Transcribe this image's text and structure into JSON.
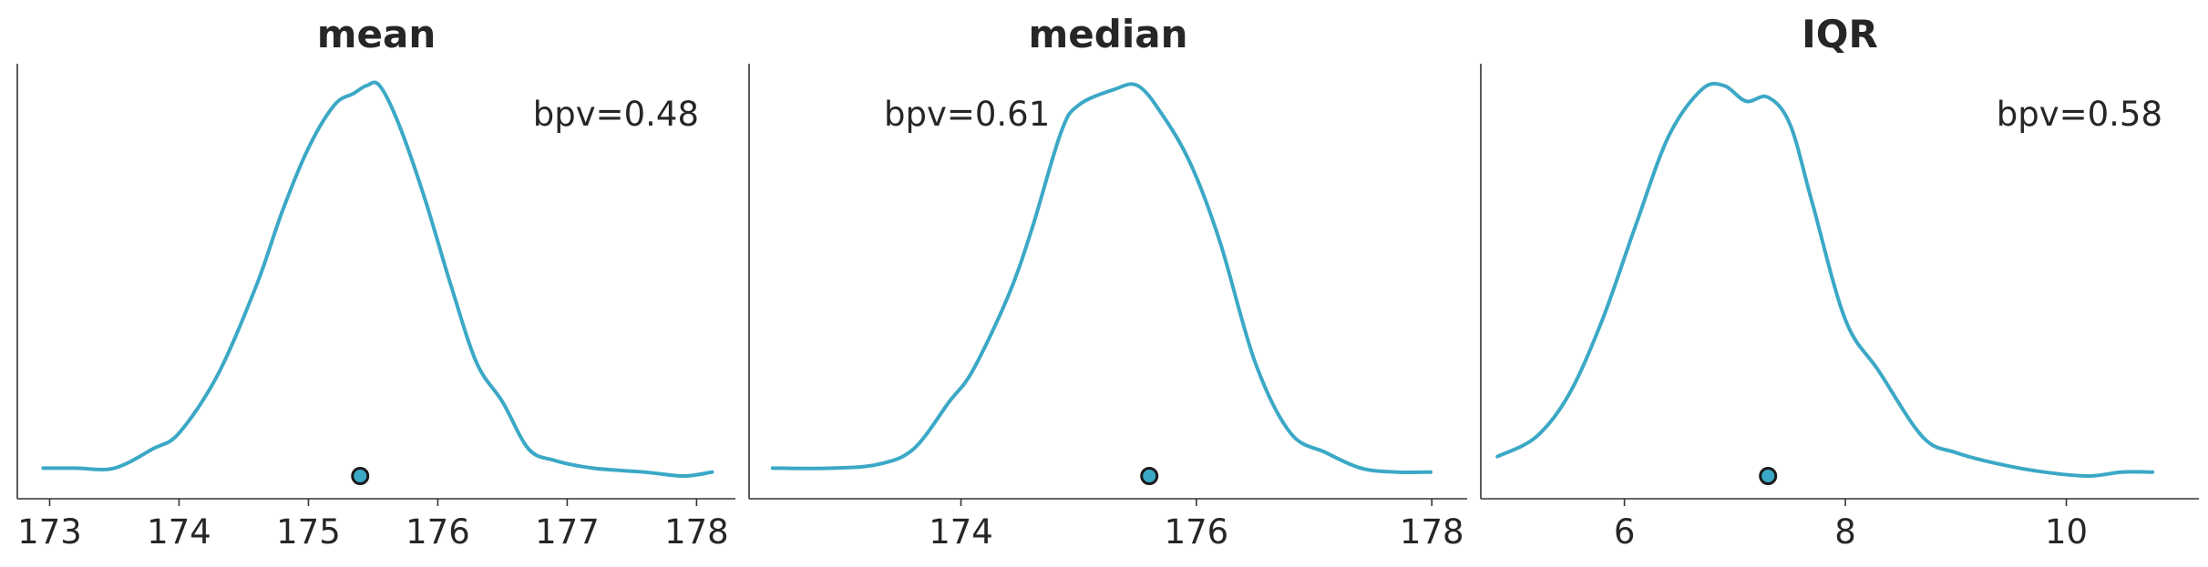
{
  "chart_data": [
    {
      "type": "line",
      "title": "mean",
      "annotation": "bpv=0.48",
      "xlim": [
        172.75,
        178.3
      ],
      "xticks": [
        173,
        174,
        175,
        176,
        177,
        178
      ],
      "xtick_labels": [
        "173",
        "174",
        "175",
        "176",
        "177",
        "178"
      ],
      "ylim": [
        0,
        1
      ],
      "point": {
        "x": 175.4,
        "y": 0
      },
      "series": [
        {
          "x": [
            172.95,
            173.2,
            173.5,
            173.8,
            174.0,
            174.3,
            174.6,
            174.8,
            175.0,
            175.2,
            175.35,
            175.45,
            175.55,
            175.7,
            175.9,
            176.1,
            176.3,
            176.5,
            176.7,
            176.9,
            177.2,
            177.6,
            177.9,
            178.12
          ],
          "y": [
            0.02,
            0.02,
            0.02,
            0.07,
            0.11,
            0.26,
            0.49,
            0.68,
            0.84,
            0.95,
            0.98,
            1.0,
            1.0,
            0.9,
            0.71,
            0.49,
            0.29,
            0.19,
            0.07,
            0.04,
            0.02,
            0.01,
            0.0,
            0.01
          ]
        }
      ]
    },
    {
      "type": "line",
      "title": "median",
      "annotation": "bpv=0.61",
      "xlim": [
        172.2,
        178.3
      ],
      "xticks": [
        174,
        176,
        178
      ],
      "xtick_labels": [
        "174",
        "176",
        "178"
      ],
      "ylim": [
        0,
        1
      ],
      "point": {
        "x": 175.6,
        "y": 0
      },
      "series": [
        {
          "x": [
            172.4,
            172.9,
            173.3,
            173.6,
            173.9,
            174.1,
            174.4,
            174.6,
            174.85,
            175.0,
            175.3,
            175.5,
            175.7,
            175.95,
            176.2,
            176.5,
            176.8,
            177.1,
            177.4,
            177.7,
            177.99
          ],
          "y": [
            0.02,
            0.02,
            0.03,
            0.07,
            0.19,
            0.27,
            0.46,
            0.63,
            0.88,
            0.95,
            0.99,
            1.0,
            0.93,
            0.8,
            0.6,
            0.29,
            0.11,
            0.06,
            0.02,
            0.01,
            0.01
          ]
        }
      ]
    },
    {
      "type": "line",
      "title": "IQR",
      "annotation": "bpv=0.58",
      "xlim": [
        4.7,
        11.2
      ],
      "xticks": [
        6,
        8,
        10
      ],
      "xtick_labels": [
        "6",
        "8",
        "10"
      ],
      "ylim": [
        0,
        1
      ],
      "point": {
        "x": 7.3,
        "y": 0
      },
      "series": [
        {
          "x": [
            4.85,
            5.2,
            5.5,
            5.8,
            6.1,
            6.4,
            6.7,
            6.9,
            7.1,
            7.3,
            7.5,
            7.7,
            8.0,
            8.3,
            8.7,
            9.0,
            9.4,
            9.8,
            10.2,
            10.5,
            10.78
          ],
          "y": [
            0.05,
            0.1,
            0.21,
            0.4,
            0.64,
            0.87,
            0.99,
            1.0,
            0.96,
            0.97,
            0.9,
            0.7,
            0.4,
            0.27,
            0.1,
            0.06,
            0.03,
            0.01,
            0.0,
            0.01,
            0.01
          ]
        }
      ]
    }
  ]
}
